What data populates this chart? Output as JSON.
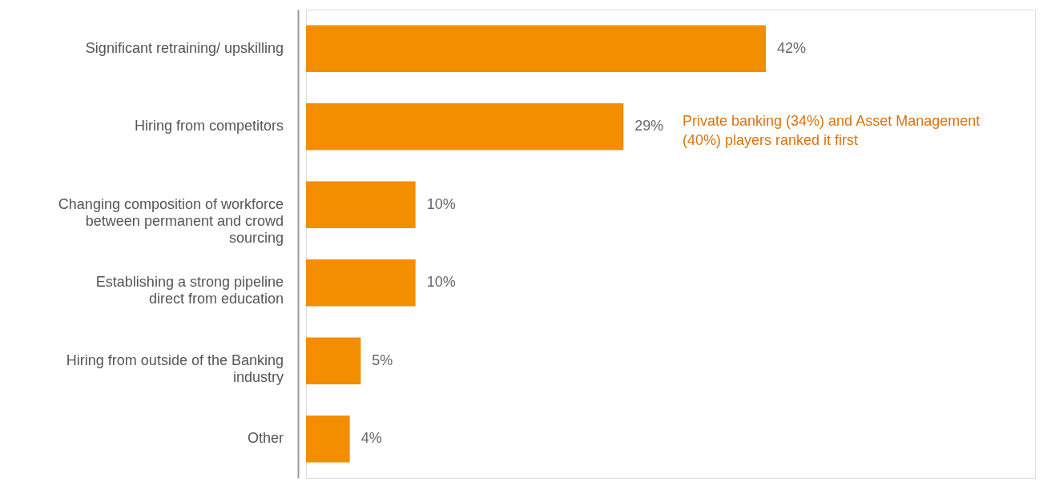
{
  "chart_data": {
    "type": "bar",
    "orientation": "horizontal",
    "categories": [
      "Significant retraining/ upskilling",
      "Hiring from competitors",
      "Changing composition of workforce between permanent and crowd sourcing",
      "Establishing a strong pipeline direct from education",
      "Hiring from outside of the Banking industry",
      "Other"
    ],
    "values": [
      42,
      29,
      10,
      10,
      5,
      4
    ],
    "value_labels": [
      "42%",
      "29%",
      "10%",
      "10%",
      "5%",
      "4%"
    ],
    "color": "#f28e00",
    "annotations": [
      "Private banking (34%) and Asset Management (40%) players ranked it first"
    ]
  }
}
